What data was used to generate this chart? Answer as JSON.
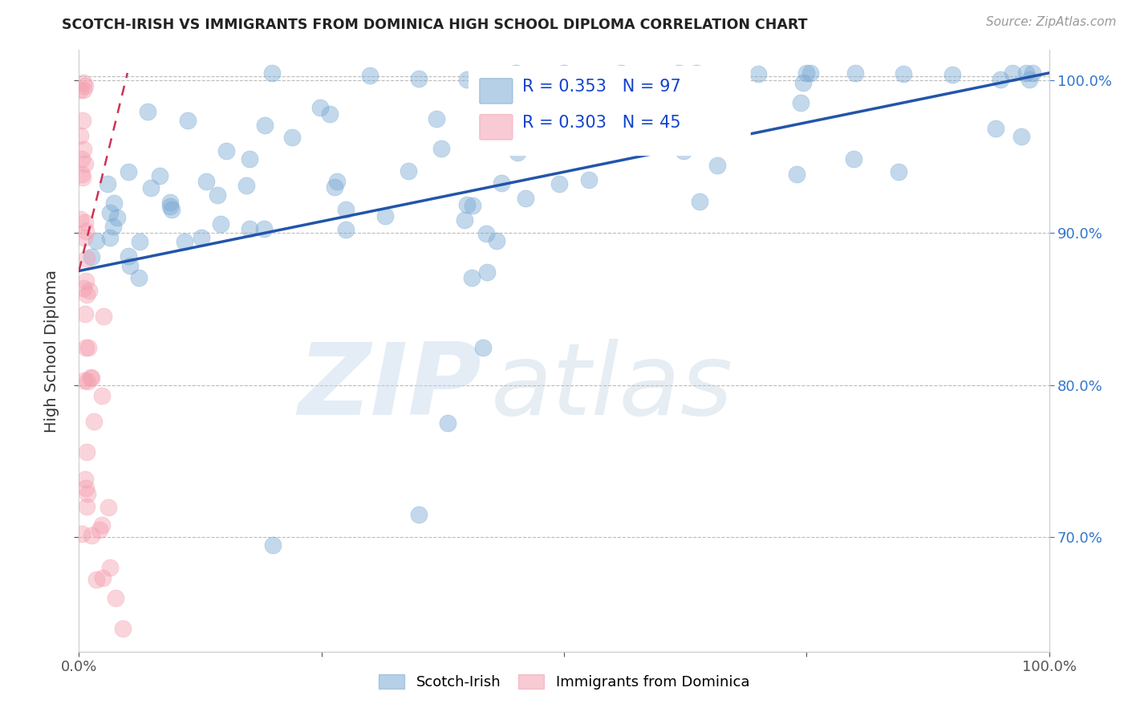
{
  "title": "SCOTCH-IRISH VS IMMIGRANTS FROM DOMINICA HIGH SCHOOL DIPLOMA CORRELATION CHART",
  "source": "Source: ZipAtlas.com",
  "ylabel": "High School Diploma",
  "x_min": 0.0,
  "x_max": 1.0,
  "y_min": 0.625,
  "y_max": 1.02,
  "y_ticks": [
    0.7,
    0.8,
    0.9,
    1.0
  ],
  "y_tick_labels": [
    "70.0%",
    "80.0%",
    "90.0%",
    "100.0%"
  ],
  "blue_R": 0.353,
  "blue_N": 97,
  "pink_R": 0.303,
  "pink_N": 45,
  "blue_label": "Scotch-Irish",
  "pink_label": "Immigrants from Dominica",
  "blue_color": "#7aaad4",
  "pink_color": "#f4a0b0",
  "blue_line_color": "#2255aa",
  "pink_line_color": "#cc3355",
  "legend_text_color": "#1144cc",
  "right_tick_color": "#3377cc",
  "background_color": "#ffffff",
  "blue_line_x0": 0.0,
  "blue_line_y0": 0.875,
  "blue_line_x1": 1.0,
  "blue_line_y1": 1.005,
  "pink_line_x0": 0.0,
  "pink_line_y0": 0.875,
  "pink_line_x1": 0.05,
  "pink_line_y1": 1.005
}
